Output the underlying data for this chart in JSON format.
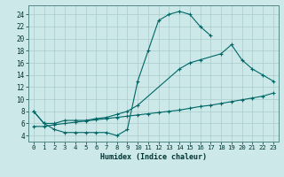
{
  "xlabel": "Humidex (Indice chaleur)",
  "background_color": "#cce8e8",
  "grid_color": "#aacccc",
  "line_color": "#006666",
  "xlim": [
    -0.5,
    23.5
  ],
  "ylim": [
    3.0,
    25.5
  ],
  "yticks": [
    4,
    6,
    8,
    10,
    12,
    14,
    16,
    18,
    20,
    22,
    24
  ],
  "xticks": [
    0,
    1,
    2,
    3,
    4,
    5,
    6,
    7,
    8,
    9,
    10,
    11,
    12,
    13,
    14,
    15,
    16,
    17,
    18,
    19,
    20,
    21,
    22,
    23
  ],
  "line1_x": [
    0,
    1,
    2,
    3,
    4,
    5,
    6,
    7,
    8,
    9,
    10,
    11,
    12,
    13,
    14,
    15,
    16,
    17
  ],
  "line1_y": [
    8,
    6,
    5,
    4.5,
    4.5,
    4.5,
    4.5,
    4.5,
    4,
    5,
    13,
    18,
    23,
    24,
    24.5,
    24,
    22,
    20.5
  ],
  "line2_x": [
    0,
    1,
    2,
    3,
    4,
    5,
    6,
    7,
    8,
    9,
    10,
    14,
    15,
    16,
    18,
    19,
    20,
    21,
    22,
    23
  ],
  "line2_y": [
    8,
    6,
    6,
    6.5,
    6.5,
    6.5,
    6.8,
    7,
    7.5,
    8,
    9,
    15,
    16,
    16.5,
    17.5,
    19,
    16.5,
    15,
    14,
    13
  ],
  "line3_x": [
    0,
    1,
    2,
    3,
    4,
    5,
    6,
    7,
    8,
    9,
    10,
    11,
    12,
    13,
    14,
    15,
    16,
    17,
    18,
    19,
    20,
    21,
    22,
    23
  ],
  "line3_y": [
    5.5,
    5.5,
    5.8,
    6.0,
    6.2,
    6.4,
    6.6,
    6.8,
    7.0,
    7.2,
    7.4,
    7.6,
    7.8,
    8.0,
    8.2,
    8.5,
    8.8,
    9.0,
    9.3,
    9.6,
    9.9,
    10.2,
    10.5,
    11.0
  ]
}
